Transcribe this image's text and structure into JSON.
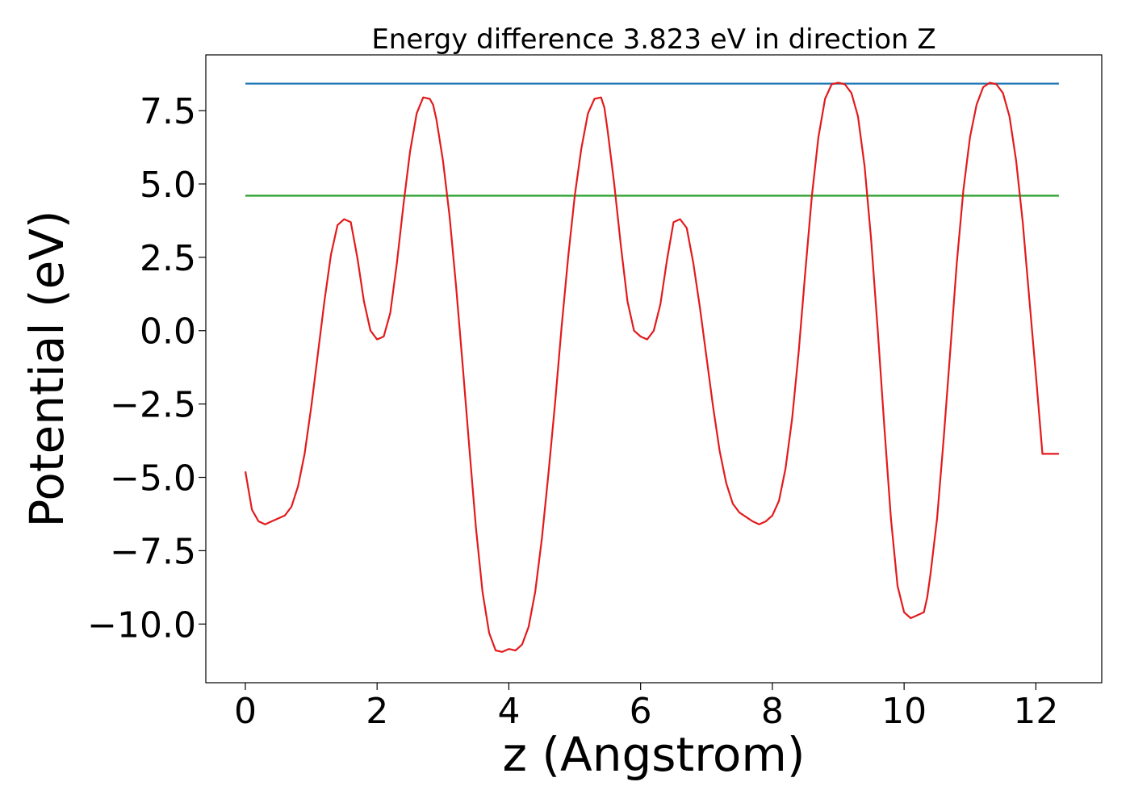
{
  "chart_data": {
    "type": "line",
    "title": "Energy difference 3.823 eV in direction Z",
    "xlabel": "z (Angstrom)",
    "ylabel": "Potential (eV)",
    "xlim": [
      -0.6,
      13.0
    ],
    "ylim": [
      -12.0,
      9.4
    ],
    "xticks": [
      0,
      2,
      4,
      6,
      8,
      10,
      12
    ],
    "xtick_labels": [
      "0",
      "2",
      "4",
      "6",
      "8",
      "10",
      "12"
    ],
    "yticks": [
      -10.0,
      -7.5,
      -5.0,
      -2.5,
      0.0,
      2.5,
      5.0,
      7.5
    ],
    "ytick_labels": [
      "−10.0",
      "−7.5",
      "−5.0",
      "−2.5",
      "0.0",
      "2.5",
      "5.0",
      "7.5"
    ],
    "grid": false,
    "legend": "none",
    "series": [
      {
        "color": "#1f77b4",
        "x": [
          0,
          12.35
        ],
        "y": [
          8.42,
          8.42
        ]
      },
      {
        "color": "#2ca02c",
        "x": [
          0,
          12.35
        ],
        "y": [
          4.6,
          4.6
        ]
      },
      {
        "color": "#e31a1c",
        "x": [
          0.0,
          0.1,
          0.2,
          0.3,
          0.4,
          0.5,
          0.6,
          0.7,
          0.8,
          0.9,
          1.0,
          1.1,
          1.2,
          1.3,
          1.4,
          1.5,
          1.6,
          1.7,
          1.8,
          1.9,
          2.0,
          2.1,
          2.2,
          2.3,
          2.4,
          2.5,
          2.6,
          2.7,
          2.8,
          2.85,
          2.9,
          3.0,
          3.1,
          3.2,
          3.3,
          3.4,
          3.5,
          3.6,
          3.7,
          3.8,
          3.9,
          4.0,
          4.1,
          4.15,
          4.2,
          4.3,
          4.4,
          4.5,
          4.6,
          4.7,
          4.8,
          4.9,
          5.0,
          5.1,
          5.2,
          5.3,
          5.4,
          5.45,
          5.5,
          5.6,
          5.7,
          5.8,
          5.9,
          6.0,
          6.1,
          6.2,
          6.3,
          6.4,
          6.5,
          6.6,
          6.7,
          6.8,
          6.9,
          7.0,
          7.1,
          7.2,
          7.3,
          7.4,
          7.5,
          7.6,
          7.7,
          7.8,
          7.9,
          8.0,
          8.1,
          8.2,
          8.3,
          8.4,
          8.5,
          8.6,
          8.7,
          8.8,
          8.9,
          9.0,
          9.1,
          9.2,
          9.3,
          9.4,
          9.5,
          9.6,
          9.7,
          9.8,
          9.9,
          10.0,
          10.1,
          10.2,
          10.3,
          10.35,
          10.4,
          10.5,
          10.6,
          10.7,
          10.8,
          10.9,
          11.0,
          11.1,
          11.2,
          11.3,
          11.4,
          11.5,
          11.6,
          11.7,
          11.8,
          11.9,
          12.0,
          12.1,
          12.2,
          12.35
        ],
        "y": [
          -4.8,
          -6.1,
          -6.5,
          -6.6,
          -6.5,
          -6.4,
          -6.3,
          -6.0,
          -5.3,
          -4.2,
          -2.6,
          -0.8,
          1.0,
          2.6,
          3.6,
          3.8,
          3.7,
          2.5,
          1.0,
          0.0,
          -0.3,
          -0.2,
          0.6,
          2.3,
          4.3,
          6.1,
          7.4,
          7.95,
          7.9,
          7.7,
          7.2,
          5.8,
          3.9,
          1.5,
          -1.2,
          -4.0,
          -6.7,
          -8.9,
          -10.3,
          -10.9,
          -10.95,
          -10.85,
          -10.9,
          -10.8,
          -10.7,
          -10.1,
          -8.9,
          -7.1,
          -4.9,
          -2.5,
          0.1,
          2.5,
          4.6,
          6.2,
          7.4,
          7.9,
          7.95,
          7.6,
          6.8,
          5.0,
          2.9,
          1.0,
          0.0,
          -0.2,
          -0.3,
          0.0,
          0.9,
          2.4,
          3.7,
          3.8,
          3.5,
          2.3,
          0.8,
          -0.9,
          -2.6,
          -4.1,
          -5.2,
          -5.9,
          -6.2,
          -6.35,
          -6.5,
          -6.6,
          -6.5,
          -6.3,
          -5.8,
          -4.7,
          -3.0,
          -0.7,
          2.0,
          4.6,
          6.6,
          7.9,
          8.4,
          8.45,
          8.4,
          8.1,
          7.3,
          5.6,
          3.1,
          0.0,
          -3.3,
          -6.4,
          -8.7,
          -9.6,
          -9.8,
          -9.7,
          -9.6,
          -9.1,
          -8.3,
          -6.4,
          -3.7,
          -0.7,
          2.3,
          4.8,
          6.6,
          7.7,
          8.3,
          8.45,
          8.4,
          8.1,
          7.3,
          5.8,
          3.7,
          1.1,
          -1.5,
          -4.2,
          -4.2,
          -4.2
        ]
      }
    ]
  }
}
